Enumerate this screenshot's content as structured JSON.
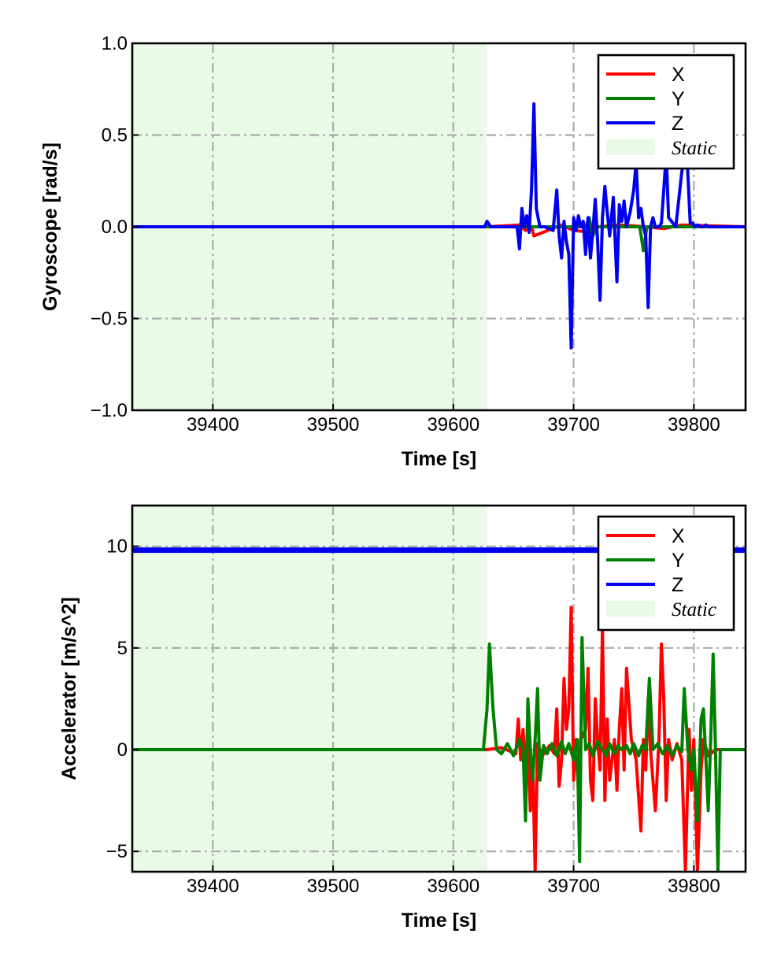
{
  "chart_data": [
    {
      "type": "line",
      "ylabel": "Gyroscope [rad/s]",
      "xlabel": "Time [s]",
      "xlim": [
        39333,
        39843
      ],
      "ylim": [
        -1.0,
        1.0
      ],
      "xticks": [
        39400,
        39500,
        39600,
        39700,
        39800
      ],
      "yticks": [
        -1.0,
        -0.5,
        0.0,
        0.5,
        1.0
      ],
      "ytick_labels": [
        "−1.0",
        "−0.5",
        "0.0",
        "0.5",
        "1.0"
      ],
      "grid": true,
      "legend_placement": "top-right",
      "static_interval": [
        39333,
        39628
      ],
      "static_label": "Static",
      "static_color": "#e9fbe7",
      "series": [
        {
          "name": "X",
          "color": "#ff0000",
          "x": [
            39333,
            39628,
            39655,
            39660,
            39665,
            39667,
            39690,
            39700,
            39716,
            39718,
            39720,
            39740,
            39760,
            39775,
            39790,
            39843
          ],
          "y": [
            0.0,
            0.0,
            0.01,
            -0.02,
            0.0,
            -0.05,
            0.01,
            -0.02,
            -0.03,
            0.02,
            0.0,
            0.01,
            0.0,
            -0.01,
            0.01,
            0.0
          ]
        },
        {
          "name": "Y",
          "color": "#008000",
          "x": [
            39333,
            39628,
            39700,
            39710,
            39713,
            39716,
            39720,
            39755,
            39758,
            39761,
            39790,
            39843
          ],
          "y": [
            0.0,
            0.0,
            0.0,
            0.0,
            0.05,
            -0.05,
            0.0,
            0.0,
            -0.13,
            0.0,
            0.0,
            0.0
          ]
        },
        {
          "name": "Z",
          "color": "#0000ee",
          "x": [
            39333,
            39626,
            39628,
            39631,
            39653,
            39655,
            39657,
            39659,
            39661,
            39663,
            39665,
            39667,
            39669,
            39672,
            39676,
            39683,
            39686,
            39688,
            39690,
            39692,
            39694,
            39696,
            39698,
            39700,
            39702,
            39704,
            39706,
            39708,
            39710,
            39712,
            39714,
            39716,
            39718,
            39720,
            39722,
            39724,
            39726,
            39728,
            39730,
            39733,
            39736,
            39738,
            39740,
            39742,
            39744,
            39747,
            39750,
            39752,
            39754,
            39756,
            39758,
            39760,
            39762,
            39764,
            39766,
            39768,
            39771,
            39773,
            39775,
            39777,
            39779,
            39785,
            39790,
            39794,
            39797,
            39799,
            39801,
            39803,
            39806,
            39808,
            39810,
            39812,
            39815,
            39843
          ],
          "y": [
            0.0,
            0.0,
            0.03,
            0.0,
            0.0,
            -0.12,
            0.1,
            0.0,
            0.06,
            -0.03,
            0.2,
            0.67,
            0.1,
            0.0,
            0.0,
            -0.02,
            0.2,
            -0.05,
            -0.17,
            0.03,
            -0.08,
            -0.15,
            -0.66,
            0.05,
            -0.02,
            0.06,
            0.0,
            0.03,
            -0.15,
            0.05,
            -0.17,
            -0.02,
            0.15,
            -0.08,
            -0.4,
            0.05,
            0.22,
            0.08,
            -0.05,
            0.16,
            -0.3,
            0.12,
            0.03,
            0.14,
            0.0,
            0.08,
            0.2,
            0.35,
            0.05,
            0.1,
            0.0,
            -0.05,
            -0.44,
            0.0,
            0.05,
            0.0,
            0.0,
            0.02,
            0.2,
            0.4,
            0.05,
            0.0,
            0.3,
            0.42,
            0.02,
            0.02,
            0.0,
            0.01,
            0.0,
            0.0,
            0.01,
            0.0,
            0.0,
            0.0
          ]
        }
      ]
    },
    {
      "type": "line",
      "ylabel": "Accelerator [m/s^2]",
      "xlabel": "Time [s]",
      "xlim": [
        39333,
        39843
      ],
      "ylim": [
        -6.0,
        12.0
      ],
      "xticks": [
        39400,
        39500,
        39600,
        39700,
        39800
      ],
      "yticks": [
        -5,
        0,
        5,
        10
      ],
      "ytick_labels": [
        "−5",
        "0",
        "5",
        "10"
      ],
      "grid": true,
      "legend_placement": "top-right",
      "static_interval": [
        39333,
        39628
      ],
      "static_label": "Static",
      "static_color": "#e9fbe7",
      "series": [
        {
          "name": "X",
          "color": "#ff0000",
          "x": [
            39333,
            39628,
            39640,
            39652,
            39654,
            39656,
            39658,
            39660,
            39662,
            39664,
            39666,
            39668,
            39670,
            39674,
            39680,
            39684,
            39686,
            39688,
            39690,
            39692,
            39694,
            39696,
            39698,
            39700,
            39702,
            39704,
            39706,
            39710,
            39712,
            39714,
            39716,
            39718,
            39720,
            39722,
            39724,
            39726,
            39728,
            39730,
            39734,
            39736,
            39738,
            39740,
            39742,
            39744,
            39748,
            39752,
            39756,
            39758,
            39760,
            39762,
            39764,
            39768,
            39771,
            39773,
            39775,
            39777,
            39779,
            39782,
            39786,
            39790,
            39793,
            39796,
            39798,
            39800,
            39803,
            39806,
            39808,
            39812,
            39818,
            39843
          ],
          "y": [
            0.0,
            0.0,
            0.1,
            -0.2,
            1.5,
            -0.5,
            1.0,
            -1.0,
            0.5,
            -3.0,
            -0.5,
            -6.0,
            0.3,
            -0.3,
            0.2,
            -0.2,
            2.0,
            -1.8,
            -0.5,
            3.5,
            1.0,
            2.0,
            7.0,
            -1.5,
            0.5,
            -2.0,
            0.5,
            1.0,
            4.0,
            -1.5,
            -2.5,
            2.5,
            0.5,
            -1.0,
            6.0,
            -2.5,
            1.5,
            -1.5,
            0.5,
            -2.0,
            1.0,
            3.0,
            -1.0,
            4.0,
            0.5,
            -0.5,
            -4.0,
            0.5,
            -1.0,
            2.5,
            0.0,
            -3.0,
            0.5,
            5.2,
            2.5,
            -2.5,
            0.5,
            -0.5,
            0.3,
            -0.5,
            -6.0,
            1.0,
            -2.0,
            0.5,
            -6.0,
            -1.0,
            0.5,
            -0.3,
            0.0,
            0.0
          ]
        },
        {
          "name": "Y",
          "color": "#008000",
          "x": [
            39333,
            39625,
            39628,
            39630,
            39633,
            39636,
            39640,
            39645,
            39650,
            39655,
            39658,
            39660,
            39662,
            39664,
            39666,
            39668,
            39670,
            39672,
            39675,
            39678,
            39682,
            39686,
            39690,
            39693,
            39696,
            39700,
            39703,
            39705,
            39707,
            39710,
            39713,
            39716,
            39720,
            39724,
            39727,
            39730,
            39734,
            39737,
            39740,
            39744,
            39747,
            39750,
            39754,
            39757,
            39760,
            39763,
            39766,
            39770,
            39774,
            39778,
            39782,
            39786,
            39790,
            39792,
            39795,
            39798,
            39800,
            39803,
            39806,
            39808,
            39810,
            39812,
            39814,
            39816,
            39818,
            39820,
            39822,
            39824,
            39830,
            39843
          ],
          "y": [
            0.0,
            0.0,
            2.0,
            5.2,
            2.0,
            0.0,
            -0.2,
            0.3,
            -0.3,
            0.5,
            0.0,
            -3.5,
            2.5,
            0.0,
            -1.5,
            0.5,
            3.0,
            -1.5,
            0.2,
            -0.2,
            0.3,
            -0.3,
            0.4,
            -0.2,
            0.3,
            -0.5,
            0.5,
            -5.5,
            5.5,
            0.0,
            0.3,
            -0.3,
            0.4,
            0.0,
            -0.3,
            0.3,
            -0.2,
            0.2,
            0.0,
            0.2,
            -0.2,
            0.3,
            -0.3,
            0.2,
            0.0,
            3.5,
            0.0,
            0.3,
            -0.2,
            0.2,
            -0.3,
            0.2,
            -0.1,
            3.0,
            0.0,
            -1.0,
            0.0,
            -3.5,
            1.5,
            2.0,
            -0.5,
            -3.0,
            0.5,
            4.7,
            0.0,
            -6.0,
            0.0,
            0.0,
            0.0,
            0.0
          ]
        },
        {
          "name": "Z",
          "color": "#0000ee",
          "x": [
            39333,
            39843
          ],
          "y": [
            9.81,
            9.81
          ]
        }
      ]
    }
  ]
}
